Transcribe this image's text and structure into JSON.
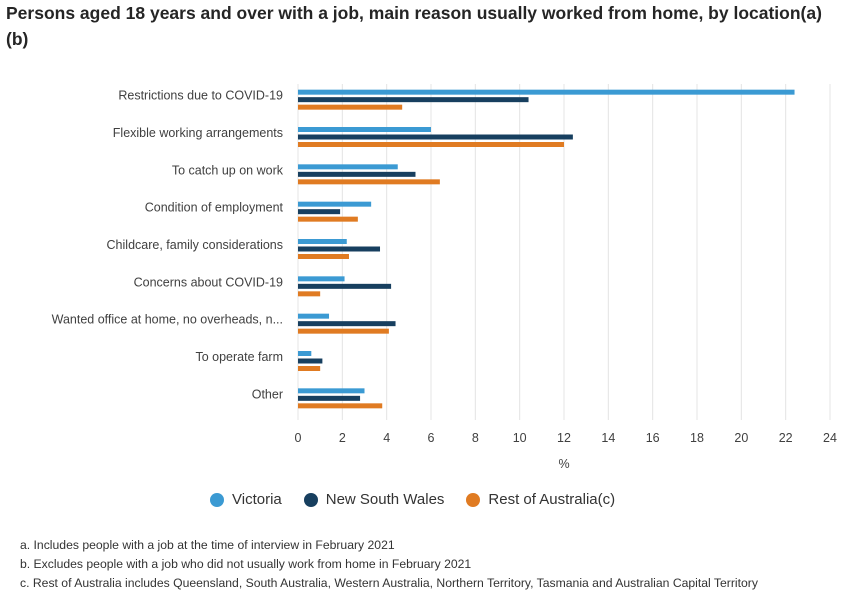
{
  "chart_data": {
    "type": "bar",
    "orientation": "horizontal",
    "title": "Persons aged 18 years and over with a job, main reason usually worked from home, by location(a)(b)",
    "xlabel": "%",
    "ylabel": "",
    "xlim": [
      0,
      24
    ],
    "x_ticks": [
      "0",
      "2",
      "4",
      "6",
      "8",
      "10",
      "12",
      "14",
      "16",
      "18",
      "20",
      "22",
      "24"
    ],
    "grid": true,
    "legend_position": "bottom",
    "categories": [
      "Restrictions due to COVID-19",
      "Flexible working arrangements",
      "To catch up on work",
      "Condition of employment",
      "Childcare, family considerations",
      "Concerns about COVID-19",
      "Wanted office at home, no overheads, n...",
      "To operate farm",
      "Other"
    ],
    "series": [
      {
        "name": "Victoria",
        "color": "#3b9ad3",
        "values": [
          22.4,
          6.0,
          4.5,
          3.3,
          2.2,
          2.1,
          1.4,
          0.6,
          3.0
        ]
      },
      {
        "name": "New South Wales",
        "color": "#173f5f",
        "values": [
          10.4,
          12.4,
          5.3,
          1.9,
          3.7,
          4.2,
          4.4,
          1.1,
          2.8
        ]
      },
      {
        "name": "Rest of Australia(c)",
        "color": "#e07b22",
        "values": [
          4.7,
          12.0,
          6.4,
          2.7,
          2.3,
          1.0,
          4.1,
          1.0,
          3.8
        ]
      }
    ]
  },
  "notes": [
    "a. Includes people with a job at the time of interview in February 2021",
    "b. Excludes people with a job who did not usually work from home in February 2021",
    "c. Rest of Australia includes Queensland, South Australia, Western Australia, Northern Territory, Tasmania and Australian Capital Territory"
  ]
}
